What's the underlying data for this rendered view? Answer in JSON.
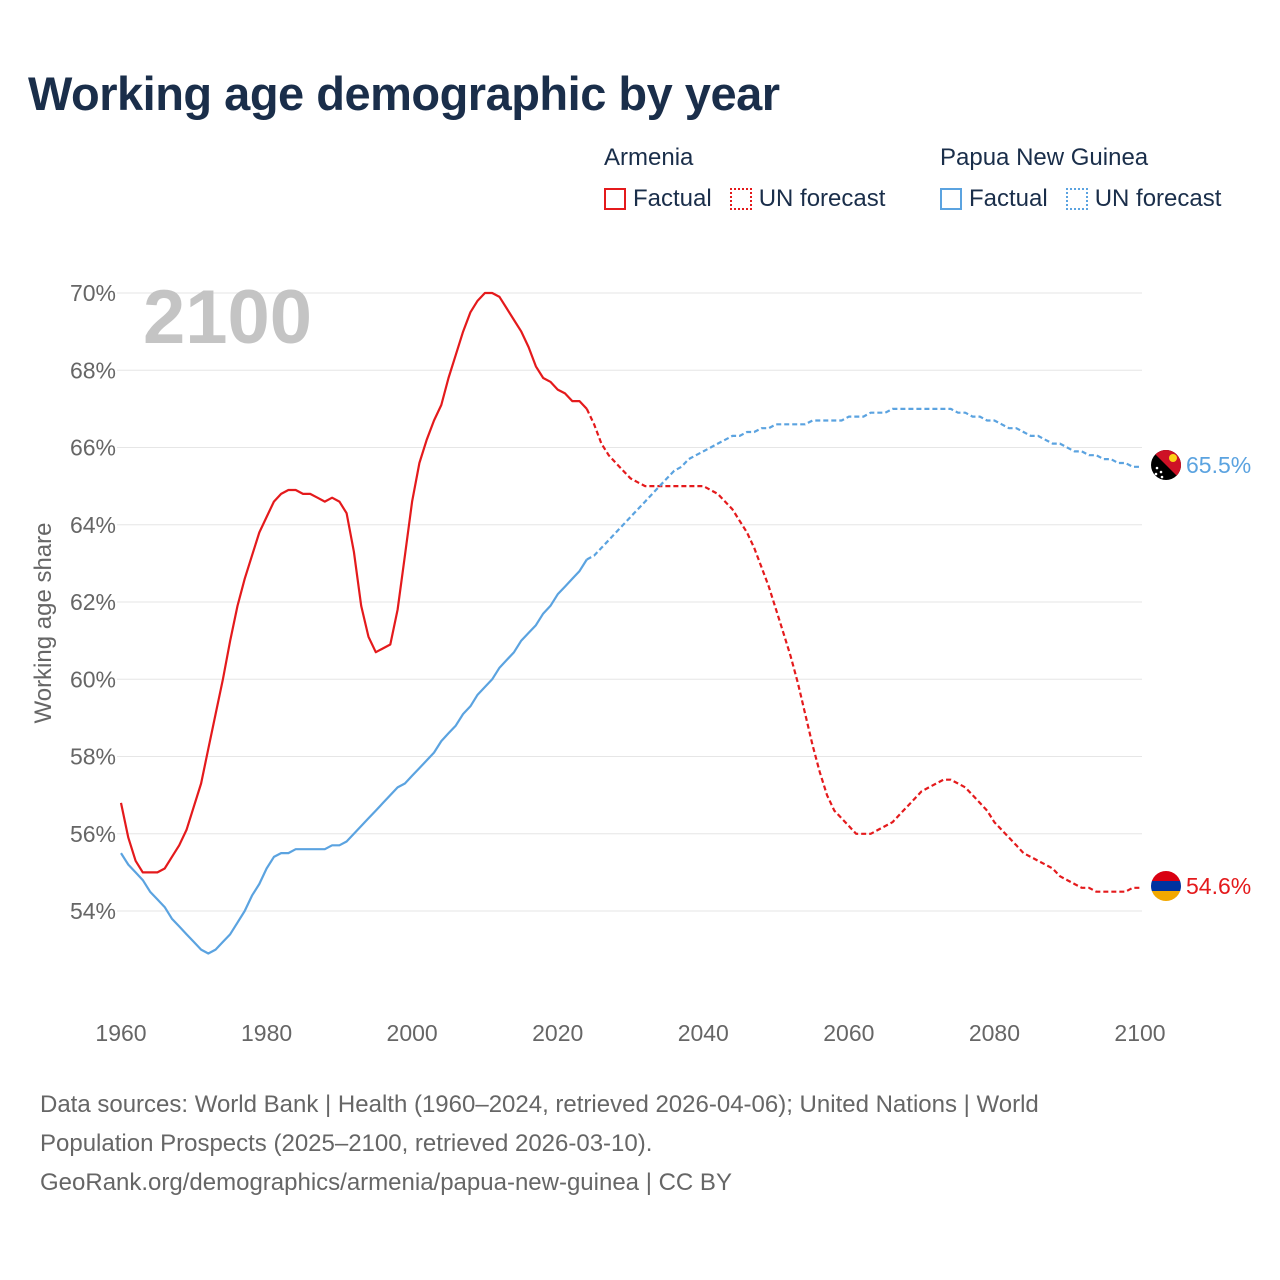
{
  "title": "Working age demographic by year",
  "big_year": "2100",
  "legend": {
    "groups": [
      {
        "name": "Armenia",
        "factual": "Factual",
        "forecast": "UN forecast",
        "color": "#e41a1c"
      },
      {
        "name": "Papua New Guinea",
        "factual": "Factual",
        "forecast": "UN forecast",
        "color": "#5ba3e0"
      }
    ]
  },
  "footer": {
    "line1": "Data sources: World Bank | Health (1960–2024, retrieved 2026-04-06); United Nations | World",
    "line2": "Population Prospects (2025–2100, retrieved 2026-03-10).",
    "line3": "GeoRank.org/demographics/armenia/papua-new-guinea | CC BY"
  },
  "chart_data": {
    "type": "line",
    "title": "Working age demographic by year",
    "xlabel": "",
    "ylabel": "Working age share",
    "xlim": [
      1960,
      2100
    ],
    "ylim": [
      52,
      71
    ],
    "x_ticks": [
      "1960",
      "1980",
      "2000",
      "2020",
      "2040",
      "2060",
      "2080",
      "2100"
    ],
    "y_ticks": [
      "54%",
      "56%",
      "58%",
      "60%",
      "62%",
      "64%",
      "66%",
      "68%",
      "70%"
    ],
    "forecast_start": 2024,
    "series": [
      {
        "name": "Armenia",
        "color": "#e41a1c",
        "end_label": "54.6%",
        "points": [
          [
            1960,
            56.8
          ],
          [
            1961,
            55.9
          ],
          [
            1962,
            55.3
          ],
          [
            1963,
            55.0
          ],
          [
            1964,
            55.0
          ],
          [
            1965,
            55.0
          ],
          [
            1966,
            55.1
          ],
          [
            1967,
            55.4
          ],
          [
            1968,
            55.7
          ],
          [
            1969,
            56.1
          ],
          [
            1970,
            56.7
          ],
          [
            1971,
            57.3
          ],
          [
            1972,
            58.2
          ],
          [
            1973,
            59.1
          ],
          [
            1974,
            60.0
          ],
          [
            1975,
            61.0
          ],
          [
            1976,
            61.9
          ],
          [
            1977,
            62.6
          ],
          [
            1978,
            63.2
          ],
          [
            1979,
            63.8
          ],
          [
            1980,
            64.2
          ],
          [
            1981,
            64.6
          ],
          [
            1982,
            64.8
          ],
          [
            1983,
            64.9
          ],
          [
            1984,
            64.9
          ],
          [
            1985,
            64.8
          ],
          [
            1986,
            64.8
          ],
          [
            1987,
            64.7
          ],
          [
            1988,
            64.6
          ],
          [
            1989,
            64.7
          ],
          [
            1990,
            64.6
          ],
          [
            1991,
            64.3
          ],
          [
            1992,
            63.3
          ],
          [
            1993,
            61.9
          ],
          [
            1994,
            61.1
          ],
          [
            1995,
            60.7
          ],
          [
            1996,
            60.8
          ],
          [
            1997,
            60.9
          ],
          [
            1998,
            61.8
          ],
          [
            1999,
            63.2
          ],
          [
            2000,
            64.6
          ],
          [
            2001,
            65.6
          ],
          [
            2002,
            66.2
          ],
          [
            2003,
            66.7
          ],
          [
            2004,
            67.1
          ],
          [
            2005,
            67.8
          ],
          [
            2006,
            68.4
          ],
          [
            2007,
            69.0
          ],
          [
            2008,
            69.5
          ],
          [
            2009,
            69.8
          ],
          [
            2010,
            70.0
          ],
          [
            2011,
            70.0
          ],
          [
            2012,
            69.9
          ],
          [
            2013,
            69.6
          ],
          [
            2014,
            69.3
          ],
          [
            2015,
            69.0
          ],
          [
            2016,
            68.6
          ],
          [
            2017,
            68.1
          ],
          [
            2018,
            67.8
          ],
          [
            2019,
            67.7
          ],
          [
            2020,
            67.5
          ],
          [
            2021,
            67.4
          ],
          [
            2022,
            67.2
          ],
          [
            2023,
            67.2
          ],
          [
            2024,
            67.0
          ],
          [
            2025,
            66.6
          ],
          [
            2026,
            66.1
          ],
          [
            2027,
            65.8
          ],
          [
            2028,
            65.6
          ],
          [
            2029,
            65.4
          ],
          [
            2030,
            65.2
          ],
          [
            2031,
            65.1
          ],
          [
            2032,
            65.0
          ],
          [
            2033,
            65.0
          ],
          [
            2034,
            65.0
          ],
          [
            2035,
            65.0
          ],
          [
            2036,
            65.0
          ],
          [
            2037,
            65.0
          ],
          [
            2038,
            65.0
          ],
          [
            2039,
            65.0
          ],
          [
            2040,
            65.0
          ],
          [
            2041,
            64.9
          ],
          [
            2042,
            64.8
          ],
          [
            2043,
            64.6
          ],
          [
            2044,
            64.4
          ],
          [
            2045,
            64.1
          ],
          [
            2046,
            63.8
          ],
          [
            2047,
            63.4
          ],
          [
            2048,
            62.9
          ],
          [
            2049,
            62.4
          ],
          [
            2050,
            61.8
          ],
          [
            2051,
            61.2
          ],
          [
            2052,
            60.6
          ],
          [
            2053,
            59.9
          ],
          [
            2054,
            59.1
          ],
          [
            2055,
            58.3
          ],
          [
            2056,
            57.6
          ],
          [
            2057,
            57.0
          ],
          [
            2058,
            56.6
          ],
          [
            2059,
            56.4
          ],
          [
            2060,
            56.2
          ],
          [
            2061,
            56.0
          ],
          [
            2062,
            56.0
          ],
          [
            2063,
            56.0
          ],
          [
            2064,
            56.1
          ],
          [
            2065,
            56.2
          ],
          [
            2066,
            56.3
          ],
          [
            2067,
            56.5
          ],
          [
            2068,
            56.7
          ],
          [
            2069,
            56.9
          ],
          [
            2070,
            57.1
          ],
          [
            2071,
            57.2
          ],
          [
            2072,
            57.3
          ],
          [
            2073,
            57.4
          ],
          [
            2074,
            57.4
          ],
          [
            2075,
            57.3
          ],
          [
            2076,
            57.2
          ],
          [
            2077,
            57.0
          ],
          [
            2078,
            56.8
          ],
          [
            2079,
            56.6
          ],
          [
            2080,
            56.3
          ],
          [
            2081,
            56.1
          ],
          [
            2082,
            55.9
          ],
          [
            2083,
            55.7
          ],
          [
            2084,
            55.5
          ],
          [
            2085,
            55.4
          ],
          [
            2086,
            55.3
          ],
          [
            2087,
            55.2
          ],
          [
            2088,
            55.1
          ],
          [
            2089,
            54.9
          ],
          [
            2090,
            54.8
          ],
          [
            2091,
            54.7
          ],
          [
            2092,
            54.6
          ],
          [
            2093,
            54.6
          ],
          [
            2094,
            54.5
          ],
          [
            2095,
            54.5
          ],
          [
            2096,
            54.5
          ],
          [
            2097,
            54.5
          ],
          [
            2098,
            54.5
          ],
          [
            2099,
            54.6
          ],
          [
            2100,
            54.6
          ]
        ]
      },
      {
        "name": "Papua New Guinea",
        "color": "#5ba3e0",
        "end_label": "65.5%",
        "points": [
          [
            1960,
            55.5
          ],
          [
            1961,
            55.2
          ],
          [
            1962,
            55.0
          ],
          [
            1963,
            54.8
          ],
          [
            1964,
            54.5
          ],
          [
            1965,
            54.3
          ],
          [
            1966,
            54.1
          ],
          [
            1967,
            53.8
          ],
          [
            1968,
            53.6
          ],
          [
            1969,
            53.4
          ],
          [
            1970,
            53.2
          ],
          [
            1971,
            53.0
          ],
          [
            1972,
            52.9
          ],
          [
            1973,
            53.0
          ],
          [
            1974,
            53.2
          ],
          [
            1975,
            53.4
          ],
          [
            1976,
            53.7
          ],
          [
            1977,
            54.0
          ],
          [
            1978,
            54.4
          ],
          [
            1979,
            54.7
          ],
          [
            1980,
            55.1
          ],
          [
            1981,
            55.4
          ],
          [
            1982,
            55.5
          ],
          [
            1983,
            55.5
          ],
          [
            1984,
            55.6
          ],
          [
            1985,
            55.6
          ],
          [
            1986,
            55.6
          ],
          [
            1987,
            55.6
          ],
          [
            1988,
            55.6
          ],
          [
            1989,
            55.7
          ],
          [
            1990,
            55.7
          ],
          [
            1991,
            55.8
          ],
          [
            1992,
            56.0
          ],
          [
            1993,
            56.2
          ],
          [
            1994,
            56.4
          ],
          [
            1995,
            56.6
          ],
          [
            1996,
            56.8
          ],
          [
            1997,
            57.0
          ],
          [
            1998,
            57.2
          ],
          [
            1999,
            57.3
          ],
          [
            2000,
            57.5
          ],
          [
            2001,
            57.7
          ],
          [
            2002,
            57.9
          ],
          [
            2003,
            58.1
          ],
          [
            2004,
            58.4
          ],
          [
            2005,
            58.6
          ],
          [
            2006,
            58.8
          ],
          [
            2007,
            59.1
          ],
          [
            2008,
            59.3
          ],
          [
            2009,
            59.6
          ],
          [
            2010,
            59.8
          ],
          [
            2011,
            60.0
          ],
          [
            2012,
            60.3
          ],
          [
            2013,
            60.5
          ],
          [
            2014,
            60.7
          ],
          [
            2015,
            61.0
          ],
          [
            2016,
            61.2
          ],
          [
            2017,
            61.4
          ],
          [
            2018,
            61.7
          ],
          [
            2019,
            61.9
          ],
          [
            2020,
            62.2
          ],
          [
            2021,
            62.4
          ],
          [
            2022,
            62.6
          ],
          [
            2023,
            62.8
          ],
          [
            2024,
            63.1
          ],
          [
            2025,
            63.2
          ],
          [
            2026,
            63.4
          ],
          [
            2027,
            63.6
          ],
          [
            2028,
            63.8
          ],
          [
            2029,
            64.0
          ],
          [
            2030,
            64.2
          ],
          [
            2031,
            64.4
          ],
          [
            2032,
            64.6
          ],
          [
            2033,
            64.8
          ],
          [
            2034,
            65.0
          ],
          [
            2035,
            65.2
          ],
          [
            2036,
            65.4
          ],
          [
            2037,
            65.5
          ],
          [
            2038,
            65.7
          ],
          [
            2039,
            65.8
          ],
          [
            2040,
            65.9
          ],
          [
            2041,
            66.0
          ],
          [
            2042,
            66.1
          ],
          [
            2043,
            66.2
          ],
          [
            2044,
            66.3
          ],
          [
            2045,
            66.3
          ],
          [
            2046,
            66.4
          ],
          [
            2047,
            66.4
          ],
          [
            2048,
            66.5
          ],
          [
            2049,
            66.5
          ],
          [
            2050,
            66.6
          ],
          [
            2051,
            66.6
          ],
          [
            2052,
            66.6
          ],
          [
            2053,
            66.6
          ],
          [
            2054,
            66.6
          ],
          [
            2055,
            66.7
          ],
          [
            2056,
            66.7
          ],
          [
            2057,
            66.7
          ],
          [
            2058,
            66.7
          ],
          [
            2059,
            66.7
          ],
          [
            2060,
            66.8
          ],
          [
            2061,
            66.8
          ],
          [
            2062,
            66.8
          ],
          [
            2063,
            66.9
          ],
          [
            2064,
            66.9
          ],
          [
            2065,
            66.9
          ],
          [
            2066,
            67.0
          ],
          [
            2067,
            67.0
          ],
          [
            2068,
            67.0
          ],
          [
            2069,
            67.0
          ],
          [
            2070,
            67.0
          ],
          [
            2071,
            67.0
          ],
          [
            2072,
            67.0
          ],
          [
            2073,
            67.0
          ],
          [
            2074,
            67.0
          ],
          [
            2075,
            66.9
          ],
          [
            2076,
            66.9
          ],
          [
            2077,
            66.8
          ],
          [
            2078,
            66.8
          ],
          [
            2079,
            66.7
          ],
          [
            2080,
            66.7
          ],
          [
            2081,
            66.6
          ],
          [
            2082,
            66.5
          ],
          [
            2083,
            66.5
          ],
          [
            2084,
            66.4
          ],
          [
            2085,
            66.3
          ],
          [
            2086,
            66.3
          ],
          [
            2087,
            66.2
          ],
          [
            2088,
            66.1
          ],
          [
            2089,
            66.1
          ],
          [
            2090,
            66.0
          ],
          [
            2091,
            65.9
          ],
          [
            2092,
            65.9
          ],
          [
            2093,
            65.8
          ],
          [
            2094,
            65.8
          ],
          [
            2095,
            65.7
          ],
          [
            2096,
            65.7
          ],
          [
            2097,
            65.6
          ],
          [
            2098,
            65.6
          ],
          [
            2099,
            65.5
          ],
          [
            2100,
            65.5
          ]
        ]
      }
    ]
  }
}
